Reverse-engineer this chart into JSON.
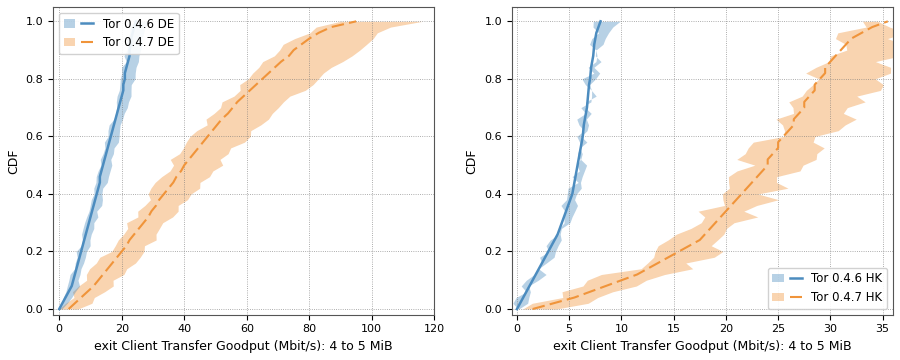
{
  "left": {
    "xlabel": "exit Client Transfer Goodput (Mbit/s): 4 to 5 MiB",
    "ylabel": "CDF",
    "xlim": [
      -2,
      120
    ],
    "ylim": [
      -0.02,
      1.05
    ],
    "xticks": [
      0,
      20,
      40,
      60,
      80,
      100,
      120
    ],
    "yticks": [
      0.0,
      0.2,
      0.4,
      0.6,
      0.8,
      1.0
    ],
    "blue_color": "#4C8CBF",
    "orange_color": "#F0943A",
    "legend": [
      "Tor 0.4.6 DE",
      "Tor 0.4.7 DE"
    ],
    "legend_loc": "upper left",
    "blue_line": {
      "y": [
        0.0,
        0.02,
        0.04,
        0.06,
        0.08,
        0.1,
        0.12,
        0.14,
        0.16,
        0.18,
        0.2,
        0.22,
        0.24,
        0.26,
        0.28,
        0.3,
        0.32,
        0.34,
        0.36,
        0.38,
        0.4,
        0.42,
        0.44,
        0.46,
        0.48,
        0.5,
        0.52,
        0.54,
        0.56,
        0.58,
        0.6,
        0.62,
        0.64,
        0.66,
        0.68,
        0.7,
        0.72,
        0.74,
        0.76,
        0.78,
        0.8,
        0.82,
        0.84,
        0.86,
        0.88,
        0.9,
        0.92,
        0.94,
        0.96,
        0.98,
        1.0
      ],
      "x": [
        0.0,
        1.0,
        2.0,
        3.0,
        4.0,
        4.5,
        5.0,
        5.5,
        6.0,
        6.5,
        7.0,
        7.5,
        8.0,
        8.5,
        9.0,
        9.5,
        10.0,
        10.5,
        11.0,
        11.5,
        12.0,
        12.5,
        13.0,
        13.0,
        13.5,
        14.0,
        14.5,
        15.0,
        15.5,
        16.0,
        16.5,
        17.0,
        17.5,
        18.0,
        18.5,
        19.0,
        19.5,
        20.0,
        20.5,
        20.5,
        21.0,
        21.0,
        21.5,
        22.0,
        22.5,
        22.5,
        23.0,
        23.0,
        23.5,
        24.0,
        24.5
      ],
      "lower": [
        0.0,
        0.5,
        1.0,
        2.0,
        3.0,
        3.5,
        4.0,
        4.5,
        5.0,
        5.5,
        6.0,
        6.5,
        7.0,
        7.5,
        8.0,
        8.5,
        9.0,
        9.5,
        10.0,
        10.5,
        11.0,
        11.5,
        12.0,
        12.0,
        12.5,
        13.0,
        13.5,
        14.0,
        14.5,
        15.0,
        15.5,
        16.0,
        16.5,
        17.0,
        17.5,
        18.0,
        18.5,
        19.0,
        19.0,
        19.5,
        20.0,
        20.0,
        20.5,
        21.0,
        21.0,
        21.5,
        22.0,
        22.0,
        22.5,
        23.0,
        23.5
      ],
      "upper": [
        0.5,
        2.0,
        3.5,
        5.0,
        6.0,
        6.5,
        7.0,
        7.5,
        8.0,
        8.5,
        9.0,
        9.5,
        10.0,
        10.5,
        11.0,
        11.5,
        12.0,
        12.5,
        13.0,
        13.5,
        14.0,
        14.5,
        15.0,
        15.5,
        16.0,
        16.5,
        17.0,
        17.5,
        18.0,
        18.5,
        19.0,
        19.5,
        20.0,
        20.5,
        21.0,
        21.5,
        22.0,
        22.5,
        23.0,
        23.5,
        24.0,
        24.0,
        24.5,
        25.0,
        25.5,
        26.0,
        26.5,
        27.0,
        27.5,
        28.0,
        29.0
      ]
    },
    "orange_line": {
      "y": [
        0.0,
        0.02,
        0.04,
        0.06,
        0.08,
        0.1,
        0.12,
        0.14,
        0.16,
        0.18,
        0.2,
        0.22,
        0.24,
        0.26,
        0.28,
        0.3,
        0.32,
        0.34,
        0.36,
        0.38,
        0.4,
        0.42,
        0.44,
        0.46,
        0.48,
        0.5,
        0.52,
        0.54,
        0.56,
        0.58,
        0.6,
        0.62,
        0.64,
        0.66,
        0.68,
        0.7,
        0.72,
        0.74,
        0.76,
        0.78,
        0.8,
        0.82,
        0.84,
        0.86,
        0.88,
        0.9,
        0.92,
        0.94,
        0.96,
        0.98,
        1.0
      ],
      "x": [
        3.0,
        5.0,
        7.0,
        9.0,
        11.0,
        12.5,
        14.0,
        15.5,
        17.0,
        18.5,
        20.0,
        21.5,
        22.5,
        24.0,
        25.5,
        27.0,
        28.5,
        29.5,
        31.0,
        32.0,
        33.5,
        35.0,
        36.5,
        37.5,
        39.0,
        40.0,
        41.5,
        43.0,
        44.5,
        46.0,
        47.5,
        49.0,
        50.5,
        52.0,
        54.0,
        55.5,
        57.0,
        59.0,
        61.0,
        63.0,
        65.0,
        67.0,
        69.0,
        71.0,
        73.5,
        75.0,
        77.5,
        80.0,
        83.0,
        87.0,
        95.0
      ],
      "lower": [
        0.5,
        2.0,
        3.5,
        5.0,
        6.5,
        8.0,
        9.5,
        11.0,
        12.5,
        14.0,
        15.5,
        17.0,
        18.5,
        19.5,
        21.0,
        22.5,
        24.0,
        25.0,
        26.5,
        28.0,
        29.0,
        30.5,
        31.5,
        33.0,
        34.5,
        35.5,
        37.0,
        38.5,
        40.0,
        41.5,
        43.0,
        44.5,
        46.0,
        47.5,
        49.5,
        51.0,
        52.5,
        54.5,
        56.5,
        58.5,
        60.5,
        62.5,
        64.5,
        66.5,
        68.5,
        70.5,
        73.0,
        76.0,
        79.0,
        83.0,
        91.0
      ],
      "upper": [
        6.0,
        9.0,
        12.0,
        14.0,
        16.5,
        18.0,
        20.0,
        22.0,
        24.0,
        25.5,
        27.0,
        28.5,
        30.0,
        31.5,
        33.0,
        34.5,
        36.0,
        37.5,
        39.5,
        41.0,
        43.0,
        44.5,
        46.0,
        47.5,
        49.5,
        51.0,
        52.5,
        54.5,
        56.0,
        58.0,
        60.0,
        62.0,
        64.0,
        66.0,
        68.0,
        70.0,
        72.5,
        75.0,
        77.5,
        80.0,
        82.5,
        85.0,
        87.5,
        90.0,
        92.5,
        95.0,
        97.5,
        100.0,
        103.0,
        107.0,
        115.0
      ]
    }
  },
  "right": {
    "xlabel": "exit Client Transfer Goodput (Mbit/s): 4 to 5 MiB",
    "ylabel": "CDF",
    "xlim": [
      -0.5,
      36
    ],
    "ylim": [
      -0.02,
      1.05
    ],
    "xticks": [
      0,
      5,
      10,
      15,
      20,
      25,
      30,
      35
    ],
    "yticks": [
      0.0,
      0.2,
      0.4,
      0.6,
      0.8,
      1.0
    ],
    "blue_color": "#4C8CBF",
    "orange_color": "#F0943A",
    "legend": [
      "Tor 0.4.6 HK",
      "Tor 0.4.7 HK"
    ],
    "legend_loc": "lower right",
    "blue_line": {
      "y": [
        0.0,
        0.02,
        0.04,
        0.06,
        0.08,
        0.1,
        0.12,
        0.14,
        0.16,
        0.18,
        0.2,
        0.22,
        0.24,
        0.26,
        0.28,
        0.3,
        0.32,
        0.34,
        0.36,
        0.38,
        0.4,
        0.42,
        0.44,
        0.46,
        0.48,
        0.5,
        0.52,
        0.54,
        0.56,
        0.58,
        0.6,
        0.62,
        0.64,
        0.66,
        0.68,
        0.7,
        0.72,
        0.74,
        0.76,
        0.78,
        0.8,
        0.82,
        0.84,
        0.86,
        0.88,
        0.9,
        0.92,
        0.94,
        0.96,
        0.98,
        1.0
      ],
      "x": [
        0.0,
        0.3,
        0.6,
        0.9,
        1.2,
        1.5,
        1.8,
        2.1,
        2.4,
        2.7,
        3.0,
        3.3,
        3.6,
        3.9,
        4.1,
        4.3,
        4.5,
        4.7,
        4.9,
        5.1,
        5.3,
        5.4,
        5.5,
        5.6,
        5.7,
        5.8,
        5.9,
        6.0,
        6.1,
        6.2,
        6.3,
        6.35,
        6.4,
        6.5,
        6.6,
        6.7,
        6.75,
        6.8,
        6.85,
        6.9,
        7.0,
        7.05,
        7.1,
        7.2,
        7.3,
        7.35,
        7.4,
        7.5,
        7.6,
        7.8,
        8.0
      ],
      "lower": [
        0.0,
        0.2,
        0.4,
        0.7,
        1.0,
        1.3,
        1.6,
        1.9,
        2.2,
        2.5,
        2.8,
        3.1,
        3.4,
        3.7,
        3.9,
        4.1,
        4.3,
        4.5,
        4.7,
        4.9,
        5.1,
        5.2,
        5.3,
        5.4,
        5.5,
        5.6,
        5.7,
        5.8,
        5.9,
        6.0,
        6.1,
        6.15,
        6.2,
        6.3,
        6.4,
        6.5,
        6.55,
        6.6,
        6.65,
        6.7,
        6.8,
        6.85,
        6.9,
        7.0,
        7.1,
        7.15,
        7.2,
        7.3,
        7.4,
        7.5,
        7.7
      ],
      "upper": [
        0.1,
        0.5,
        0.9,
        1.2,
        1.6,
        1.9,
        2.2,
        2.5,
        2.8,
        3.1,
        3.4,
        3.7,
        4.0,
        4.3,
        4.5,
        4.7,
        4.9,
        5.1,
        5.3,
        5.5,
        5.7,
        5.8,
        5.9,
        6.0,
        6.1,
        6.2,
        6.3,
        6.4,
        6.5,
        6.6,
        6.7,
        6.75,
        6.8,
        6.9,
        7.0,
        7.1,
        7.15,
        7.2,
        7.3,
        7.4,
        7.5,
        7.6,
        7.7,
        7.9,
        8.0,
        8.1,
        8.2,
        8.4,
        8.6,
        8.9,
        9.3
      ]
    },
    "orange_line": {
      "y": [
        0.0,
        0.02,
        0.04,
        0.06,
        0.08,
        0.1,
        0.12,
        0.14,
        0.16,
        0.18,
        0.2,
        0.22,
        0.24,
        0.26,
        0.28,
        0.3,
        0.32,
        0.34,
        0.36,
        0.38,
        0.4,
        0.42,
        0.44,
        0.46,
        0.48,
        0.5,
        0.52,
        0.54,
        0.56,
        0.58,
        0.6,
        0.62,
        0.64,
        0.66,
        0.68,
        0.7,
        0.72,
        0.74,
        0.76,
        0.78,
        0.8,
        0.82,
        0.84,
        0.86,
        0.88,
        0.9,
        0.92,
        0.94,
        0.96,
        0.98,
        1.0
      ],
      "x": [
        1.5,
        3.5,
        5.5,
        7.0,
        8.5,
        10.0,
        11.5,
        12.5,
        13.5,
        14.5,
        15.5,
        16.5,
        17.5,
        18.0,
        18.5,
        19.0,
        19.5,
        20.0,
        20.5,
        21.0,
        21.5,
        22.0,
        22.5,
        23.0,
        23.5,
        24.0,
        24.0,
        24.5,
        25.0,
        25.0,
        25.5,
        26.0,
        26.5,
        26.5,
        27.0,
        27.5,
        27.5,
        28.0,
        28.5,
        28.5,
        29.0,
        29.5,
        29.5,
        30.0,
        30.5,
        31.0,
        31.5,
        32.0,
        33.0,
        34.0,
        35.5
      ],
      "lower": [
        0.5,
        2.0,
        3.5,
        5.0,
        6.5,
        8.0,
        9.5,
        10.5,
        11.5,
        12.5,
        13.5,
        14.5,
        15.5,
        16.0,
        16.5,
        17.0,
        17.5,
        18.0,
        18.5,
        19.0,
        19.5,
        20.0,
        20.5,
        21.0,
        21.5,
        22.0,
        22.5,
        23.0,
        23.5,
        24.0,
        24.5,
        25.0,
        25.5,
        26.0,
        26.5,
        26.5,
        27.0,
        27.5,
        28.0,
        28.0,
        28.5,
        29.0,
        29.0,
        29.5,
        30.0,
        30.5,
        31.0,
        31.5,
        32.0,
        33.0,
        34.5
      ],
      "upper": [
        3.5,
        5.5,
        7.5,
        9.5,
        11.0,
        12.5,
        14.0,
        15.5,
        16.5,
        17.5,
        18.5,
        19.5,
        20.5,
        21.0,
        21.5,
        22.0,
        22.5,
        23.0,
        23.5,
        24.0,
        24.5,
        25.0,
        25.5,
        26.0,
        26.5,
        27.0,
        27.5,
        28.0,
        28.5,
        29.0,
        29.5,
        30.0,
        30.5,
        31.0,
        31.5,
        32.0,
        32.5,
        33.0,
        33.5,
        34.0,
        34.5,
        35.0,
        35.0,
        35.5,
        35.5,
        36.0,
        36.0,
        36.0,
        36.0,
        36.0,
        36.0
      ]
    }
  },
  "bg_color": "#ffffff",
  "grid_color": "#888888",
  "font_size_label": 9,
  "font_size_tick": 8,
  "font_size_legend": 8.5
}
